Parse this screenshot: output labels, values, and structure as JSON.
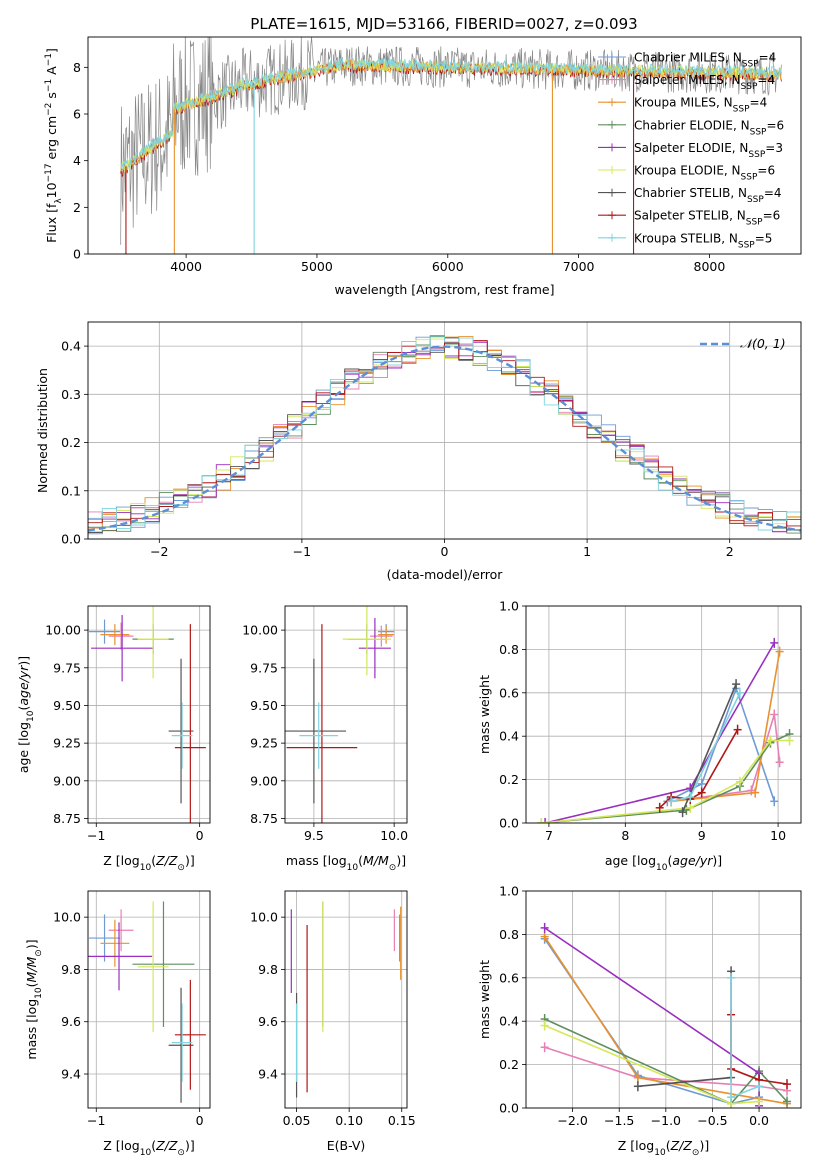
{
  "figure_title": "PLATE=1615, MJD=53166, FIBERID=0027, z=0.093",
  "series_styles": [
    {
      "name": "Chabrier MILES, N$_{SSP}$=4",
      "label": "Chabrier MILES, N",
      "sub": "SSP",
      "n": "=4",
      "color": "#6f9bd4"
    },
    {
      "name": "Salpeter MILES, N$_{SSP}$=4",
      "label": "Salpeter MILES, N",
      "sub": "SSP",
      "n": "=4",
      "color": "#e87fb5"
    },
    {
      "name": "Kroupa MILES, N$_{SSP}$=4",
      "label": "Kroupa MILES, N",
      "sub": "SSP",
      "n": "=4",
      "color": "#e8912e"
    },
    {
      "name": "Chabrier ELODIE, N$_{SSP}$=6",
      "label": "Chabrier ELODIE, N",
      "sub": "SSP",
      "n": "=6",
      "color": "#5f8f5f"
    },
    {
      "name": "Salpeter ELODIE, N$_{SSP}$=3",
      "label": "Salpeter ELODIE, N",
      "sub": "SSP",
      "n": "=3",
      "color": "#9a2fbf"
    },
    {
      "name": "Kroupa ELODIE, N$_{SSP}$=6",
      "label": "Kroupa ELODIE, N",
      "sub": "SSP",
      "n": "=6",
      "color": "#d4e85a"
    },
    {
      "name": "Chabrier STELIB, N$_{SSP}$=4",
      "label": "Chabrier STELIB, N",
      "sub": "SSP",
      "n": "=4",
      "color": "#555555"
    },
    {
      "name": "Salpeter STELIB, N$_{SSP}$=6",
      "label": "Salpeter STELIB, N",
      "sub": "SSP",
      "n": "=6",
      "color": "#b01818"
    },
    {
      "name": "Kroupa STELIB, N$_{SSP}$=5",
      "label": "Kroupa STELIB, N",
      "sub": "SSP",
      "n": "=5",
      "color": "#7fd4e0"
    }
  ],
  "chart_data": [
    {
      "id": "spectrum",
      "type": "line",
      "xlabel": "wavelength [Angstrom, rest frame]",
      "ylabel": "Flux [f",
      "ylabel_sub": "λ",
      "ylabel_mid": "10",
      "ylabel_exp": "−17",
      "ylabel_end": " erg cm",
      "ylabel_exp2": "−2",
      "ylabel_end2": " s",
      "ylabel_exp3": "−1",
      "ylabel_end3": " A",
      "ylabel_exp4": "−1",
      "ylabel_close": "]",
      "xlim": [
        3250,
        8700
      ],
      "ylim": [
        0,
        9.3
      ],
      "xticks": [
        4000,
        5000,
        6000,
        7000,
        8000
      ],
      "yticks": [
        0,
        2,
        4,
        6,
        8
      ],
      "data_range": [
        3500,
        8550
      ],
      "notes": "observed spectrum (grey) with 9 model fits overlaid"
    },
    {
      "id": "residuals",
      "type": "line",
      "xlabel": "(data-model)/error",
      "ylabel": "Normed distribution",
      "xlim": [
        -2.5,
        2.5
      ],
      "ylim": [
        0,
        0.45
      ],
      "xticks": [
        -2,
        -1,
        0,
        1,
        2
      ],
      "yticks": [
        0.0,
        0.1,
        0.2,
        0.3,
        0.4
      ],
      "legend": "𝒩(0, 1)",
      "legend_color": "#5b8fd6"
    },
    {
      "id": "age_vs_Z",
      "type": "scatter",
      "xlabel": "Z [log",
      "xlabel_sub": "10",
      "xlabel_end": "(Z/Z",
      "xlabel_odot": "⊙",
      "xlabel_close": ")]",
      "ylabel": "age  [log",
      "ylabel_sub": "10",
      "ylabel_end": "(age/yr)]",
      "xlim": [
        -1.08,
        0.1
      ],
      "ylim": [
        8.72,
        10.16
      ],
      "xticks": [
        -1,
        0
      ],
      "yticks": [
        8.75,
        9.0,
        9.25,
        9.5,
        9.75,
        10.0
      ],
      "points": [
        {
          "series": 0,
          "x": -0.92,
          "xerr": 0.15,
          "y": 9.99,
          "yerr": 0.08
        },
        {
          "series": 1,
          "x": -0.76,
          "xerr": 0.12,
          "y": 9.96,
          "yerr": 0.09
        },
        {
          "series": 2,
          "x": -0.82,
          "xerr": 0.14,
          "y": 9.97,
          "yerr": 0.07
        },
        {
          "series": 3,
          "x": -0.45,
          "xerr": 0.2,
          "y": 9.94,
          "yerr": 0.1
        },
        {
          "series": 4,
          "x": -0.75,
          "xerr": 0.3,
          "y": 9.88,
          "yerr": 0.22
        },
        {
          "series": 5,
          "x": -0.45,
          "xerr": 0.15,
          "y": 9.94,
          "yerr": 0.26
        },
        {
          "series": 6,
          "x": -0.18,
          "xerr": 0.12,
          "y": 9.33,
          "yerr": 0.48
        },
        {
          "series": 7,
          "x": -0.09,
          "xerr": 0.15,
          "y": 9.22,
          "yerr": 0.82
        },
        {
          "series": 8,
          "x": -0.17,
          "xerr": 0.1,
          "y": 9.3,
          "yerr": 0.22
        }
      ]
    },
    {
      "id": "age_vs_mass",
      "type": "scatter",
      "xlabel": "mass [log",
      "xlabel_sub": "10",
      "xlabel_end": "(M/M",
      "xlabel_odot": "⊙",
      "xlabel_close": ")]",
      "xlim": [
        9.32,
        10.08
      ],
      "ylim": [
        8.72,
        10.16
      ],
      "xticks": [
        9.5,
        10.0
      ],
      "yticks": [
        8.75,
        9.0,
        9.25,
        9.5,
        9.75,
        10.0
      ],
      "points": [
        {
          "series": 0,
          "x": 9.95,
          "xerr": 0.05,
          "y": 9.99,
          "yerr": 0.05
        },
        {
          "series": 1,
          "x": 9.92,
          "xerr": 0.07,
          "y": 9.96,
          "yerr": 0.07
        },
        {
          "series": 2,
          "x": 9.95,
          "xerr": 0.05,
          "y": 9.97,
          "yerr": 0.06
        },
        {
          "series": 3,
          "x": 9.83,
          "xerr": 0.12,
          "y": 9.94,
          "yerr": 0.1
        },
        {
          "series": 4,
          "x": 9.88,
          "xerr": 0.1,
          "y": 9.88,
          "yerr": 0.2
        },
        {
          "series": 5,
          "x": 9.83,
          "xerr": 0.15,
          "y": 9.94,
          "yerr": 0.24
        },
        {
          "series": 6,
          "x": 9.5,
          "xerr": 0.2,
          "y": 9.33,
          "yerr": 0.48
        },
        {
          "series": 7,
          "x": 9.55,
          "xerr": 0.22,
          "y": 9.22,
          "yerr": 0.82
        },
        {
          "series": 8,
          "x": 9.53,
          "xerr": 0.12,
          "y": 9.3,
          "yerr": 0.22
        }
      ]
    },
    {
      "id": "mass_weight_vs_age",
      "type": "line",
      "xlabel": "age  [log",
      "xlabel_sub": "10",
      "xlabel_end": "(age/yr)]",
      "ylabel": "mass weight",
      "xlim": [
        6.7,
        10.3
      ],
      "ylim": [
        0,
        1
      ],
      "xticks": [
        7,
        8,
        9,
        10
      ],
      "yticks": [
        0.0,
        0.2,
        0.4,
        0.6,
        0.8,
        1.0
      ],
      "series": [
        {
          "series": 0,
          "x": [
            8.55,
            9.0,
            9.45,
            9.95
          ],
          "y": [
            0.1,
            0.18,
            0.62,
            0.1
          ]
        },
        {
          "series": 1,
          "x": [
            8.6,
            9.65,
            9.95,
            10.02
          ],
          "y": [
            0.1,
            0.15,
            0.5,
            0.28
          ]
        },
        {
          "series": 2,
          "x": [
            8.6,
            9.7,
            10.02
          ],
          "y": [
            0.1,
            0.14,
            0.79
          ]
        },
        {
          "series": 3,
          "x": [
            6.9,
            8.8,
            9.5,
            9.9,
            10.15
          ],
          "y": [
            0.0,
            0.06,
            0.17,
            0.37,
            0.41
          ]
        },
        {
          "series": 4,
          "x": [
            6.95,
            8.85,
            9.95
          ],
          "y": [
            0.0,
            0.16,
            0.83
          ]
        },
        {
          "series": 5,
          "x": [
            6.9,
            8.85,
            9.5,
            9.9,
            10.15
          ],
          "y": [
            0.0,
            0.07,
            0.19,
            0.38,
            0.38
          ]
        },
        {
          "series": 6,
          "x": [
            8.75,
            9.45
          ],
          "y": [
            0.05,
            0.64
          ]
        },
        {
          "series": 7,
          "x": [
            8.45,
            8.6,
            8.85,
            9.0,
            9.47
          ],
          "y": [
            0.07,
            0.12,
            0.11,
            0.14,
            0.43
          ]
        },
        {
          "series": 8,
          "x": [
            8.6,
            8.85,
            9.5
          ],
          "y": [
            0.1,
            0.12,
            0.6
          ]
        }
      ]
    },
    {
      "id": "mass_vs_Z",
      "type": "scatter",
      "xlabel": "Z [log",
      "xlabel_sub": "10",
      "xlabel_end": "(Z/Z",
      "xlabel_odot": "⊙",
      "xlabel_close": ")]",
      "ylabel": "mass [log",
      "ylabel_sub": "10",
      "ylabel_end": "(M/M",
      "ylabel_odot": "⊙",
      "ylabel_close": ")]",
      "xlim": [
        -1.08,
        0.1
      ],
      "ylim": [
        9.27,
        10.1
      ],
      "xticks": [
        -1,
        0
      ],
      "yticks": [
        9.4,
        9.6,
        9.8,
        10.0
      ],
      "points": [
        {
          "series": 0,
          "x": -0.92,
          "xerr": 0.15,
          "y": 9.92,
          "yerr": 0.09
        },
        {
          "series": 1,
          "x": -0.76,
          "xerr": 0.12,
          "y": 9.95,
          "yerr": 0.08
        },
        {
          "series": 2,
          "x": -0.82,
          "xerr": 0.14,
          "y": 9.9,
          "yerr": 0.09
        },
        {
          "series": 3,
          "x": -0.35,
          "xerr": 0.3,
          "y": 9.82,
          "yerr": 0.24
        },
        {
          "series": 4,
          "x": -0.78,
          "xerr": 0.32,
          "y": 9.85,
          "yerr": 0.13
        },
        {
          "series": 5,
          "x": -0.45,
          "xerr": 0.15,
          "y": 9.81,
          "yerr": 0.25
        },
        {
          "series": 6,
          "x": -0.18,
          "xerr": 0.12,
          "y": 9.51,
          "yerr": 0.22
        },
        {
          "series": 7,
          "x": -0.09,
          "xerr": 0.15,
          "y": 9.55,
          "yerr": 0.21
        },
        {
          "series": 8,
          "x": -0.17,
          "xerr": 0.1,
          "y": 9.52,
          "yerr": 0.15
        }
      ]
    },
    {
      "id": "mass_vs_EBV",
      "type": "scatter",
      "xlabel": "E(B-V)",
      "xlim": [
        0.039,
        0.155
      ],
      "ylim": [
        9.27,
        10.1
      ],
      "xticks": [
        0.05,
        0.1,
        0.15
      ],
      "yticks": [
        9.4,
        9.6,
        9.8,
        10.0
      ],
      "points": [
        {
          "series": 0,
          "x": 0.148,
          "y": 9.92,
          "yerr": 0.09
        },
        {
          "series": 1,
          "x": 0.143,
          "y": 9.95,
          "yerr": 0.08
        },
        {
          "series": 2,
          "x": 0.149,
          "y": 9.9,
          "yerr": 0.14
        },
        {
          "series": 3,
          "x": 0.075,
          "y": 9.82,
          "yerr": 0.24
        },
        {
          "series": 4,
          "x": 0.045,
          "y": 9.87,
          "yerr": 0.16
        },
        {
          "series": 5,
          "x": 0.075,
          "y": 9.81,
          "yerr": 0.25
        },
        {
          "series": 6,
          "x": 0.05,
          "y": 9.51,
          "yerr": 0.2
        },
        {
          "series": 7,
          "x": 0.06,
          "y": 9.65,
          "yerr": 0.32
        },
        {
          "series": 8,
          "x": 0.05,
          "y": 9.52,
          "yerr": 0.15
        }
      ]
    },
    {
      "id": "mass_weight_vs_Z",
      "type": "line",
      "xlabel": "Z [log",
      "xlabel_sub": "10",
      "xlabel_end": "(Z/Z",
      "xlabel_odot": "⊙",
      "xlabel_close": ")]",
      "ylabel": "mass weight",
      "xlim": [
        -2.5,
        0.45
      ],
      "ylim": [
        0,
        1
      ],
      "xticks": [
        -2.0,
        -1.5,
        -1.0,
        -0.5,
        0.0
      ],
      "yticks": [
        0.0,
        0.2,
        0.4,
        0.6,
        0.8,
        1.0
      ],
      "series": [
        {
          "series": 0,
          "x": [
            -2.3,
            -1.3,
            -0.3,
            0.0
          ],
          "y": [
            0.78,
            0.15,
            0.02,
            0.05
          ]
        },
        {
          "series": 1,
          "x": [
            -2.3,
            -1.3,
            0.0,
            0.3
          ],
          "y": [
            0.28,
            0.14,
            0.1,
            0.08
          ]
        },
        {
          "series": 2,
          "x": [
            -2.3,
            -1.3,
            0.3
          ],
          "y": [
            0.79,
            0.14,
            0.02
          ]
        },
        {
          "series": 3,
          "x": [
            -2.3,
            -0.3,
            0.0,
            0.3
          ],
          "y": [
            0.41,
            0.02,
            0.17,
            0.03
          ]
        },
        {
          "series": 4,
          "x": [
            -2.3,
            0.0,
            0.0
          ],
          "y": [
            0.83,
            0.16,
            0.01
          ]
        },
        {
          "series": 5,
          "x": [
            -2.3,
            -0.3,
            0.0
          ],
          "y": [
            0.38,
            0.02,
            0.03
          ]
        },
        {
          "series": 6,
          "x": [
            -1.3,
            -0.3,
            -0.3
          ],
          "y": [
            0.1,
            0.14,
            0.63
          ]
        },
        {
          "series": 7,
          "x": [
            -0.3,
            -0.3,
            0.0,
            0.3
          ],
          "y": [
            0.43,
            0.18,
            0.13,
            0.11
          ]
        },
        {
          "series": 8,
          "x": [
            -0.3,
            -0.3,
            0.0
          ],
          "y": [
            0.6,
            0.05,
            0.1
          ]
        }
      ]
    }
  ]
}
